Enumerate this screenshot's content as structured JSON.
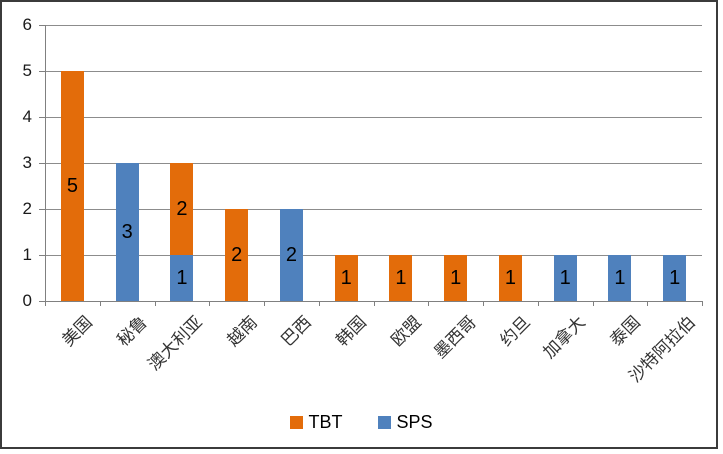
{
  "chart_data": {
    "type": "bar",
    "stacked": true,
    "title": "",
    "xlabel": "",
    "ylabel": "",
    "categories": [
      "美国",
      "秘鲁",
      "澳大利亚",
      "越南",
      "巴西",
      "韩国",
      "欧盟",
      "墨西哥",
      "约旦",
      "加拿大",
      "泰国",
      "沙特阿拉伯"
    ],
    "series": [
      {
        "name": "TBT",
        "color": "#E36C0A",
        "values": [
          5,
          0,
          2,
          2,
          0,
          1,
          1,
          1,
          1,
          0,
          0,
          0
        ]
      },
      {
        "name": "SPS",
        "color": "#4F81BD",
        "values": [
          0,
          3,
          1,
          0,
          2,
          0,
          0,
          0,
          0,
          1,
          1,
          1
        ]
      }
    ],
    "stack_order": [
      "SPS",
      "TBT"
    ],
    "totals": [
      5,
      3,
      3,
      2,
      2,
      1,
      1,
      1,
      1,
      1,
      1,
      1
    ],
    "y_ticks": [
      0,
      1,
      2,
      3,
      4,
      5,
      6
    ],
    "ylim": [
      0,
      6
    ],
    "grid": true,
    "data_labels": true,
    "legend_position": "bottom"
  },
  "colors": {
    "tbt": "#E36C0A",
    "sps": "#4F81BD",
    "gridline": "#8C8C8C",
    "axis": "#808080",
    "border": "#3B3B3B",
    "background": "#FFFFFF",
    "text": "#000000"
  }
}
